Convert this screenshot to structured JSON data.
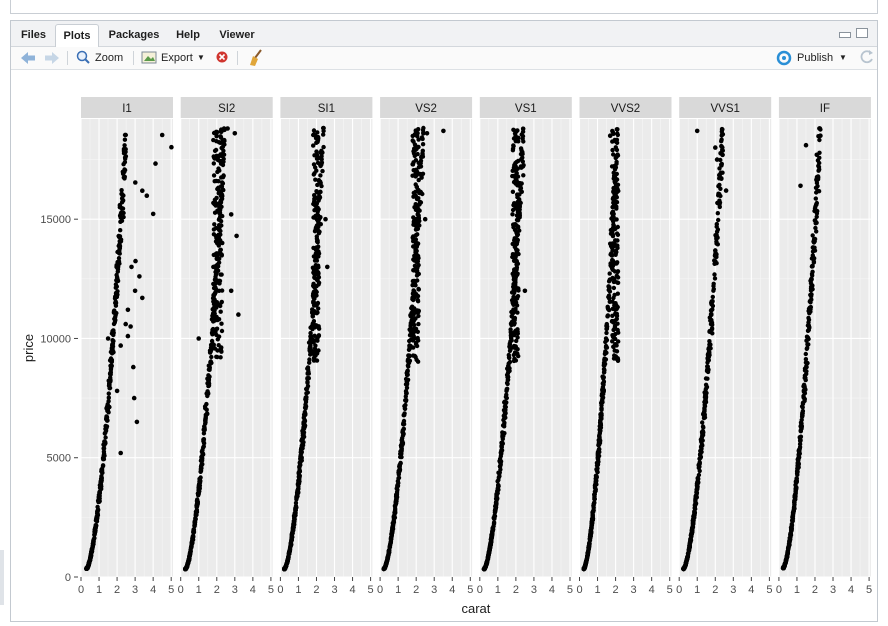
{
  "tabs": [
    {
      "label": "Files"
    },
    {
      "label": "Plots",
      "active": true
    },
    {
      "label": "Packages"
    },
    {
      "label": "Help"
    },
    {
      "label": "Viewer"
    }
  ],
  "toolbar": {
    "zoom_label": "Zoom",
    "export_label": "Export",
    "publish_label": "Publish",
    "icons": [
      "back-arrow-icon",
      "forward-arrow-icon",
      "zoom-magnifier-icon",
      "export-image-icon",
      "remove-plot-icon",
      "broom-clear-icon",
      "publish-icon",
      "refresh-icon"
    ]
  },
  "colors": {
    "panel_bg": "#ebebeb",
    "strip_bg": "#d9d9d9",
    "grid": "#ffffff",
    "points": "#000000",
    "publish_accent": "#2a8fd6",
    "remove_red": "#d0352f"
  },
  "chart_data": {
    "type": "scatter",
    "facet_by": "clarity",
    "facets": [
      "I1",
      "SI2",
      "SI1",
      "VS2",
      "VS1",
      "VVS2",
      "VVS1",
      "IF"
    ],
    "xlabel": "carat",
    "ylabel": "price",
    "xlim": [
      0,
      5.1
    ],
    "ylim": [
      0,
      19200
    ],
    "x_ticks": [
      0,
      1,
      2,
      3,
      4,
      5
    ],
    "y_ticks": [
      0,
      5000,
      10000,
      15000
    ],
    "y_tick_labels": [
      "0",
      "5000",
      "10000",
      "15000"
    ],
    "grid": true,
    "legend": "none",
    "series": [
      {
        "facet": "I1",
        "x_range": [
          0.3,
          5.0
        ],
        "y_range": [
          345,
          18531
        ],
        "points": [
          [
            4.5,
            18531
          ],
          [
            5.01,
            18018
          ],
          [
            4.13,
            17329
          ],
          [
            3.01,
            16538
          ],
          [
            3.4,
            16193
          ],
          [
            3.65,
            15984
          ],
          [
            4.0,
            15223
          ],
          [
            3.02,
            13241
          ],
          [
            2.8,
            13000
          ],
          [
            3.24,
            12600
          ],
          [
            3.0,
            12000
          ],
          [
            3.4,
            11700
          ],
          [
            2.6,
            11200
          ],
          [
            2.48,
            10600
          ],
          [
            2.75,
            10500
          ],
          [
            2.6,
            10100
          ],
          [
            1.5,
            10000
          ],
          [
            2.2,
            9700
          ],
          [
            2.9,
            8800
          ],
          [
            2.0,
            7800
          ],
          [
            2.95,
            7500
          ],
          [
            3.1,
            6500
          ],
          [
            2.2,
            5200
          ]
        ]
      },
      {
        "facet": "SI2",
        "x_range": [
          0.25,
          3.2
        ],
        "y_range": [
          326,
          18804
        ],
        "points": [
          [
            1.0,
            10000
          ],
          [
            2.6,
            18800
          ],
          [
            3.0,
            18600
          ],
          [
            2.8,
            15200
          ],
          [
            3.1,
            14300
          ],
          [
            2.3,
            14000
          ],
          [
            2.8,
            12000
          ],
          [
            3.2,
            11000
          ]
        ]
      },
      {
        "facet": "SI1",
        "x_range": [
          0.21,
          2.6
        ],
        "y_range": [
          326,
          18818
        ],
        "points": [
          [
            2.5,
            15000
          ],
          [
            2.6,
            13000
          ]
        ]
      },
      {
        "facet": "VS2",
        "x_range": [
          0.2,
          3.5
        ],
        "y_range": [
          334,
          18823
        ],
        "points": [
          [
            3.51,
            18701
          ],
          [
            2.6,
            18600
          ],
          [
            2.5,
            15000
          ]
        ]
      },
      {
        "facet": "VS1",
        "x_range": [
          0.23,
          2.6
        ],
        "y_range": [
          327,
          18795
        ],
        "points": [
          [
            2.0,
            18700
          ],
          [
            2.5,
            12000
          ]
        ]
      },
      {
        "facet": "VVS2",
        "x_range": [
          0.23,
          2.1
        ],
        "y_range": [
          336,
          18768
        ],
        "points": [
          [
            1.7,
            18500
          ],
          [
            2.0,
            16000
          ]
        ]
      },
      {
        "facet": "VVS1",
        "x_range": [
          0.23,
          2.6
        ],
        "y_range": [
          336,
          18777
        ],
        "points": [
          [
            2.0,
            18000
          ],
          [
            2.6,
            16200
          ],
          [
            1.0,
            18700
          ],
          [
            2.1,
            17500
          ]
        ]
      },
      {
        "facet": "IF",
        "x_range": [
          0.23,
          2.3
        ],
        "y_range": [
          369,
          18806
        ],
        "points": [
          [
            2.3,
            18500
          ],
          [
            2.1,
            17700
          ],
          [
            1.5,
            18100
          ],
          [
            1.2,
            16400
          ]
        ]
      }
    ]
  }
}
